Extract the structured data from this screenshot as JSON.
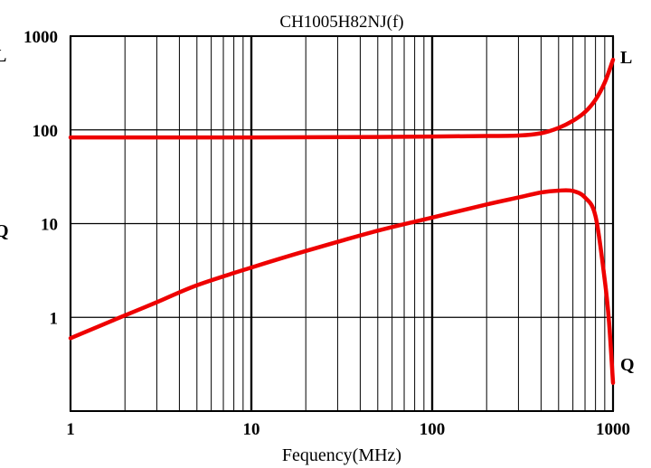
{
  "chart_data": {
    "type": "line",
    "title": "CH1005H82NJ(f)",
    "xlabel": "Fequency(MHz)",
    "ylabel_left_top": "L",
    "ylabel_left_bottom": "Q",
    "x_scale": "log",
    "y_scale": "log",
    "xlim": [
      1,
      1000
    ],
    "ylim": [
      0.1,
      1000
    ],
    "grid": true,
    "x_ticks": [
      {
        "value": 1,
        "label": "1"
      },
      {
        "value": 10,
        "label": "10"
      },
      {
        "value": 100,
        "label": "100"
      },
      {
        "value": 1000,
        "label": "1000"
      }
    ],
    "y_ticks": [
      {
        "value": 1,
        "label": "1"
      },
      {
        "value": 10,
        "label": "10"
      },
      {
        "value": 100,
        "label": "100"
      },
      {
        "value": 1000,
        "label": "1000"
      }
    ],
    "series": [
      {
        "name": "L",
        "color": "#ee0000",
        "points": [
          [
            1,
            83
          ],
          [
            10,
            83
          ],
          [
            50,
            84
          ],
          [
            100,
            85
          ],
          [
            200,
            86
          ],
          [
            300,
            87
          ],
          [
            400,
            92
          ],
          [
            500,
            105
          ],
          [
            600,
            125
          ],
          [
            700,
            155
          ],
          [
            800,
            210
          ],
          [
            900,
            320
          ],
          [
            1000,
            560
          ]
        ]
      },
      {
        "name": "Q",
        "color": "#ee0000",
        "points": [
          [
            1,
            0.6
          ],
          [
            2,
            1.05
          ],
          [
            3,
            1.45
          ],
          [
            5,
            2.2
          ],
          [
            10,
            3.4
          ],
          [
            20,
            5.1
          ],
          [
            50,
            8.4
          ],
          [
            100,
            11.6
          ],
          [
            200,
            16
          ],
          [
            300,
            19
          ],
          [
            400,
            21.5
          ],
          [
            500,
            22.5
          ],
          [
            600,
            22.3
          ],
          [
            700,
            19
          ],
          [
            800,
            12
          ],
          [
            900,
            2.5
          ],
          [
            950,
            0.9
          ],
          [
            1000,
            0.2
          ]
        ]
      }
    ]
  }
}
